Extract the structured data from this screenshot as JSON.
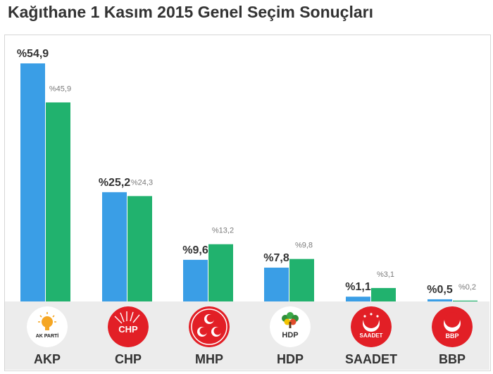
{
  "title": "Kağıthane 1 Kasım 2015 Genel Seçim Sonuçları",
  "colors": {
    "current": "#3a9ee6",
    "previous": "#21b26e"
  },
  "parties": [
    {
      "name": "AKP",
      "logo_text": "AK PARTİ",
      "icon": "ak-parti-lightbulb-icon"
    },
    {
      "name": "CHP",
      "logo_text": "CHP",
      "icon": "chp-six-arrows-icon"
    },
    {
      "name": "MHP",
      "logo_text": "",
      "icon": "mhp-three-crescents-icon"
    },
    {
      "name": "HDP",
      "logo_text": "HDP",
      "icon": "hdp-tree-icon"
    },
    {
      "name": "SAADET",
      "logo_text": "SAADET",
      "icon": "saadet-crescent-stars-icon"
    },
    {
      "name": "BBP",
      "logo_text": "BBP",
      "icon": "bbp-crescent-icon"
    }
  ],
  "chart_data": {
    "type": "bar",
    "title": "Kağıthane 1 Kasım 2015 Genel Seçim Sonuçları",
    "categories": [
      "AKP",
      "CHP",
      "MHP",
      "HDP",
      "SAADET",
      "BBP"
    ],
    "series": [
      {
        "values": [
          54.9,
          25.2,
          9.6,
          7.8,
          1.1,
          0.5
        ],
        "labels": [
          "%54,9",
          "%25,2",
          "%9,6",
          "%7,8",
          "%1,1",
          "%0,5"
        ]
      },
      {
        "values": [
          45.9,
          24.3,
          13.2,
          9.8,
          3.1,
          0.2
        ],
        "labels": [
          "%45,9",
          "%24,3",
          "%13,2",
          "%9,8",
          "%3,1",
          "%0,2"
        ]
      }
    ],
    "ylim": [
      0,
      54.9
    ],
    "grid": false
  }
}
